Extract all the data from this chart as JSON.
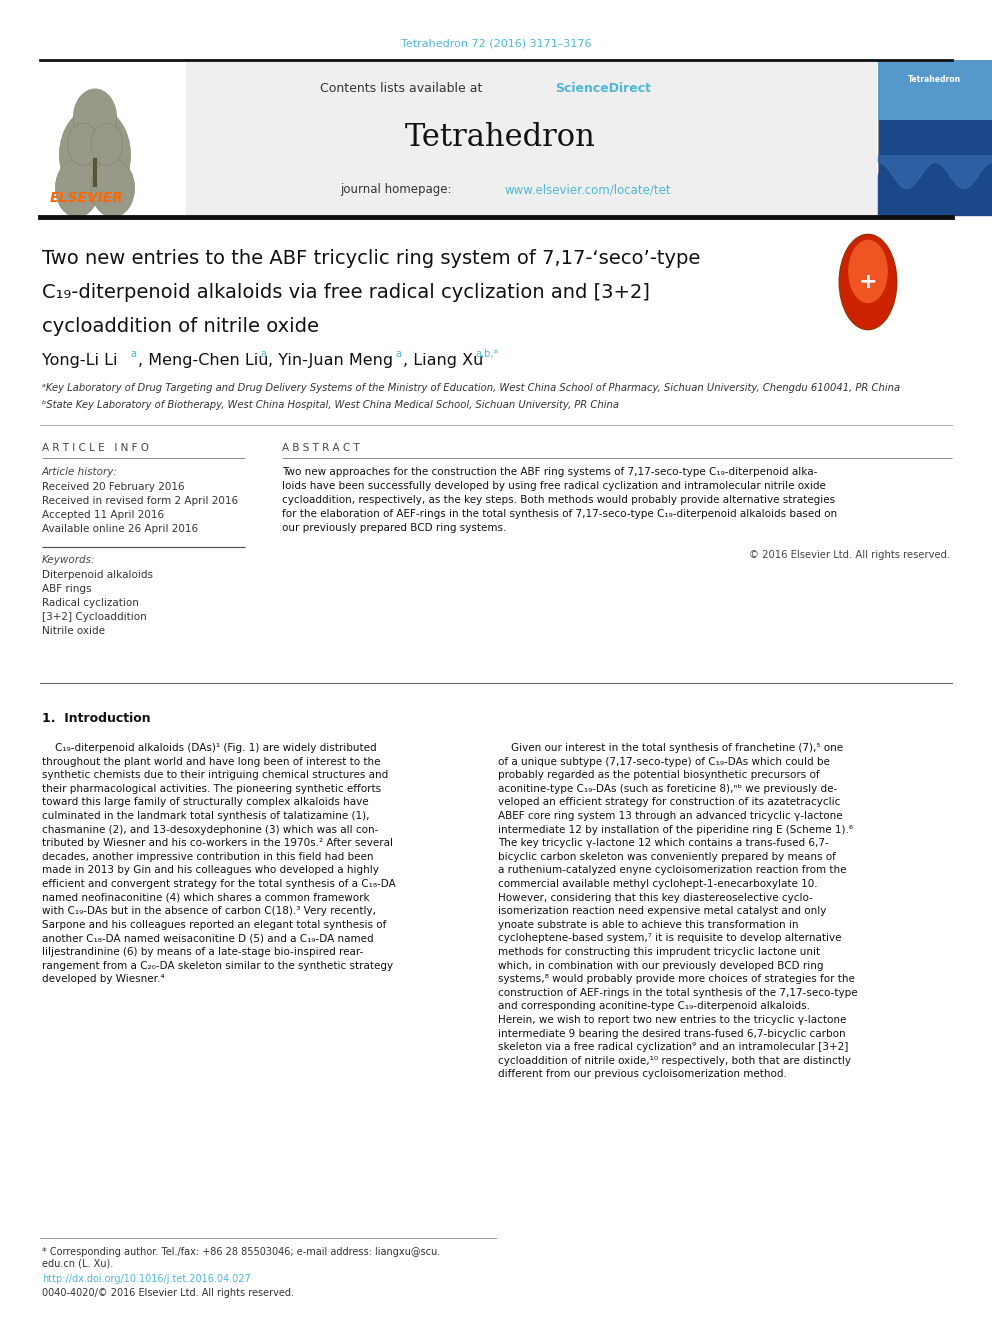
{
  "page_width": 9.92,
  "page_height": 13.23,
  "bg_color": "#ffffff",
  "top_citation": "Tetrahedron 72 (2016) 3171–3176",
  "top_citation_color": "#4db8d4",
  "header_bg": "#efefef",
  "journal_name": "Tetrahedron",
  "sciencedirect_color": "#4db8d4",
  "homepage_url_color": "#4db8d4",
  "elsevier_color": "#ff6600",
  "title_line1": "Two new entries to the ABF tricyclic ring system of 7,17-seco-type",
  "title_line2": "C₁₉-diterpenoid alkaloids via free radical cyclization and [3+2]",
  "title_line3": "cycloaddition of nitrile oxide",
  "article_info_header": "A R T I C L E   I N F O",
  "abstract_header": "A B S T R A C T",
  "received1": "Received 20 February 2016",
  "received2": "Received in revised form 2 April 2016",
  "accepted": "Accepted 11 April 2016",
  "available": "Available online 26 April 2016",
  "keywords": [
    "Diterpenoid alkaloids",
    "ABF rings",
    "Radical cyclization",
    "[3+2] Cycloaddition",
    "Nitrile oxide"
  ],
  "abstract_lines": [
    "Two new approaches for the construction the ABF ring systems of 7,17-seco-type C₁₉-diterpenoid alka-",
    "loids have been successfully developed by using free radical cyclization and intramolecular nitrile oxide",
    "cycloaddition, respectively, as the key steps. Both methods would probably provide alternative strategies",
    "for the elaboration of AEF-rings in the total synthesis of 7,17-seco-type C₁₉-diterpenoid alkaloids based on",
    "our previously prepared BCD ring systems."
  ],
  "copyright": "© 2016 Elsevier Ltd. All rights reserved.",
  "affil_a": "ᵃKey Laboratory of Drug Targeting and Drug Delivery Systems of the Ministry of Education, West China School of Pharmacy, Sichuan University, Chengdu 610041, PR China",
  "affil_b": "ᵇState Key Laboratory of Biotherapy, West China Hospital, West China Medical School, Sichuan University, PR China",
  "footer_note1": "* Corresponding author. Tel./fax: +86 28 85503046; e-mail address: liangxu@scu.",
  "footer_note2": "edu.cn (L. Xu).",
  "footer_url": "http://dx.doi.org/10.1016/j.tet.2016.04.027",
  "footer_url_color": "#4db8d4",
  "footer_copyright": "0040-4020/© 2016 Elsevier Ltd. All rights reserved.",
  "left_col_text": [
    "    C₁₉-diterpenoid alkaloids (DAs)¹ (Fig. 1) are widely distributed",
    "throughout the plant world and have long been of interest to the",
    "synthetic chemists due to their intriguing chemical structures and",
    "their pharmacological activities. The pioneering synthetic efforts",
    "toward this large family of structurally complex alkaloids have",
    "culminated in the landmark total synthesis of talatizamine (1),",
    "chasmanine (2), and 13-desoxydephonine (3) which was all con-",
    "tributed by Wiesner and his co-workers in the 1970s.² After several",
    "decades, another impressive contribution in this field had been",
    "made in 2013 by Gin and his colleagues who developed a highly",
    "efficient and convergent strategy for the total synthesis of a C₁₈-DA",
    "named neofinaconitine (4) which shares a common framework",
    "with C₁₉-DAs but in the absence of carbon C(18).³ Very recently,",
    "Sarpone and his colleagues reported an elegant total synthesis of",
    "another C₁₈-DA named weisaconitine D (5) and a C₁₉-DA named",
    "liljestrandinine (6) by means of a late-stage bio-inspired rear-",
    "rangement from a C₂₀-DA skeleton similar to the synthetic strategy",
    "developed by Wiesner.⁴"
  ],
  "right_col_text": [
    "    Given our interest in the total synthesis of franchetine (7),⁵ one",
    "of a unique subtype (7,17-seco-type) of C₁₉-DAs which could be",
    "probably regarded as the potential biosynthetic precursors of",
    "aconitine-type C₁₉-DAs (such as foreticine 8),ⁿᵇ we previously de-",
    "veloped an efficient strategy for construction of its azatetracyclic",
    "ABEF core ring system 13 through an advanced tricyclic γ-lactone",
    "intermediate 12 by installation of the piperidine ring E (Scheme 1).⁶",
    "The key tricyclic γ-lactone 12 which contains a trans-fused 6,7-",
    "bicyclic carbon skeleton was conveniently prepared by means of",
    "a ruthenium-catalyzed enyne cycloisomerization reaction from the",
    "commercial available methyl cyclohept-1-enecarboxylate 10.",
    "However, considering that this key diastereoselective cyclo-",
    "isomerization reaction need expensive metal catalyst and only",
    "ynoate substrate is able to achieve this transformation in",
    "cycloheptene-based system,⁷ it is requisite to develop alternative",
    "methods for constructing this imprudent tricyclic lactone unit",
    "which, in combination with our previously developed BCD ring",
    "systems,⁸ would probably provide more choices of strategies for the",
    "construction of AEF-rings in the total synthesis of the 7,17-seco-type",
    "and corresponding aconitine-type C₁₉-diterpenoid alkaloids.",
    "Herein, we wish to report two new entries to the tricyclic γ-lactone",
    "intermediate 9 bearing the desired trans-fused 6,7-bicyclic carbon",
    "skeleton via a free radical cyclization⁹ and an intramolecular [3+2]",
    "cycloaddition of nitrile oxide,¹⁰ respectively, both that are distinctly",
    "different from our previous cycloisomerization method."
  ]
}
